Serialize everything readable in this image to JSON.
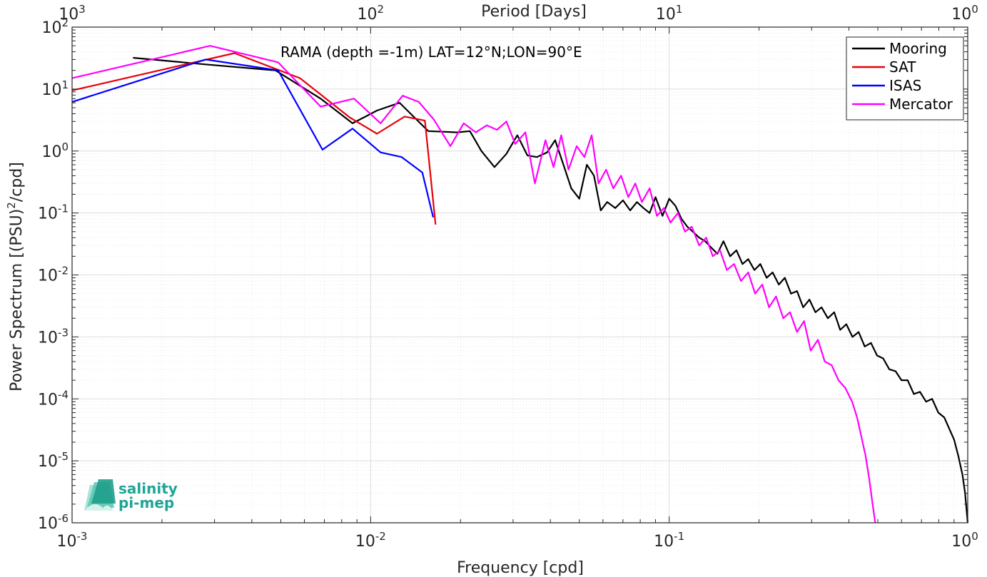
{
  "chart_data": {
    "type": "line",
    "xscale": "log",
    "yscale": "log",
    "xlim": [
      0.001,
      1
    ],
    "ylim": [
      1e-06,
      100
    ],
    "grid": true,
    "minor_grid": true,
    "xlabel": "Frequency [cpd]",
    "ylabel_main": "Power Spectrum [(PSU)",
    "ylabel_sup": "2",
    "ylabel_tail": "/cpd]",
    "top_xlabel": "Period [Days]",
    "annotation": "RAMA (depth =-1m) LAT=12°N;LON=90°E",
    "legend_position": "top-right",
    "x_ticks": [
      {
        "v": 0.001,
        "base": "10",
        "exp": "-3"
      },
      {
        "v": 0.01,
        "base": "10",
        "exp": "-2"
      },
      {
        "v": 0.1,
        "base": "10",
        "exp": "-1"
      },
      {
        "v": 1,
        "base": "10",
        "exp": "0"
      }
    ],
    "top_ticks": [
      {
        "v": 0.001,
        "base": "10",
        "exp": "3"
      },
      {
        "v": 0.01,
        "base": "10",
        "exp": "2"
      },
      {
        "v": 0.1,
        "base": "10",
        "exp": "1"
      },
      {
        "v": 1,
        "base": "10",
        "exp": "0"
      }
    ],
    "y_ticks": [
      {
        "v": 100,
        "base": "10",
        "exp": "2"
      },
      {
        "v": 10,
        "base": "10",
        "exp": "1"
      },
      {
        "v": 1,
        "base": "10",
        "exp": "0"
      },
      {
        "v": 0.1,
        "base": "10",
        "exp": "-1"
      },
      {
        "v": 0.01,
        "base": "10",
        "exp": "-2"
      },
      {
        "v": 0.001,
        "base": "10",
        "exp": "-3"
      },
      {
        "v": 0.0001,
        "base": "10",
        "exp": "-4"
      },
      {
        "v": 1e-05,
        "base": "10",
        "exp": "-5"
      },
      {
        "v": 1e-06,
        "base": "10",
        "exp": "-6"
      }
    ],
    "series": [
      {
        "name": "Mooring",
        "color": "#000000",
        "x": [
          0.0016,
          0.0028,
          0.0048,
          0.0068,
          0.0087,
          0.0105,
          0.0125,
          0.014,
          0.0156,
          0.0175,
          0.0195,
          0.0215,
          0.0235,
          0.026,
          0.0285,
          0.031,
          0.0335,
          0.036,
          0.039,
          0.0415,
          0.044,
          0.047,
          0.05,
          0.053,
          0.056,
          0.059,
          0.062,
          0.066,
          0.07,
          0.074,
          0.078,
          0.082,
          0.086,
          0.09,
          0.095,
          0.1,
          0.105,
          0.11,
          0.115,
          0.12,
          0.126,
          0.132,
          0.138,
          0.145,
          0.152,
          0.16,
          0.168,
          0.176,
          0.184,
          0.193,
          0.202,
          0.212,
          0.222,
          0.233,
          0.244,
          0.256,
          0.268,
          0.281,
          0.295,
          0.309,
          0.324,
          0.34,
          0.357,
          0.374,
          0.392,
          0.411,
          0.431,
          0.452,
          0.474,
          0.497,
          0.521,
          0.546,
          0.573,
          0.6,
          0.629,
          0.66,
          0.692,
          0.725,
          0.76,
          0.797,
          0.835,
          0.875,
          0.9,
          0.93,
          0.96,
          0.98,
          1.0
        ],
        "y": [
          32,
          25,
          20,
          7,
          2.8,
          4.5,
          6,
          3.5,
          2.1,
          2.05,
          2.0,
          2.1,
          1.0,
          0.55,
          0.9,
          1.8,
          0.85,
          0.8,
          0.95,
          1.5,
          0.65,
          0.25,
          0.17,
          0.6,
          0.4,
          0.11,
          0.15,
          0.12,
          0.16,
          0.11,
          0.15,
          0.12,
          0.1,
          0.18,
          0.09,
          0.17,
          0.13,
          0.08,
          0.06,
          0.05,
          0.04,
          0.035,
          0.028,
          0.022,
          0.035,
          0.02,
          0.025,
          0.015,
          0.018,
          0.012,
          0.015,
          0.009,
          0.011,
          0.007,
          0.009,
          0.005,
          0.0055,
          0.003,
          0.004,
          0.0025,
          0.003,
          0.002,
          0.0025,
          0.0013,
          0.0016,
          0.001,
          0.0012,
          0.0007,
          0.0008,
          0.0005,
          0.00045,
          0.0003,
          0.00028,
          0.0002,
          0.0002,
          0.00012,
          0.00013,
          9e-05,
          0.0001,
          6e-05,
          5e-05,
          3e-05,
          2.2e-05,
          1.2e-05,
          6e-06,
          3e-06,
          1e-06
        ]
      },
      {
        "name": "SAT",
        "color": "#e8000b",
        "x": [
          0.001,
          0.0035,
          0.0058,
          0.0085,
          0.0105,
          0.013,
          0.0152,
          0.0165
        ],
        "y": [
          9.5,
          38,
          15,
          3.5,
          1.9,
          3.6,
          3.1,
          0.065
        ]
      },
      {
        "name": "ISAS",
        "color": "#0000ff",
        "x": [
          0.001,
          0.0028,
          0.0049,
          0.0069,
          0.0087,
          0.0108,
          0.0127,
          0.0149,
          0.0162
        ],
        "y": [
          6.2,
          30,
          20,
          1.05,
          2.3,
          0.95,
          0.8,
          0.45,
          0.085
        ]
      },
      {
        "name": "Mercator",
        "color": "#ff00ff",
        "x": [
          0.001,
          0.0029,
          0.0049,
          0.0068,
          0.0088,
          0.0108,
          0.0128,
          0.0145,
          0.0163,
          0.0185,
          0.0205,
          0.0225,
          0.0245,
          0.0265,
          0.0285,
          0.0305,
          0.033,
          0.0355,
          0.0385,
          0.041,
          0.0435,
          0.046,
          0.049,
          0.052,
          0.055,
          0.058,
          0.0615,
          0.065,
          0.069,
          0.073,
          0.077,
          0.081,
          0.086,
          0.091,
          0.096,
          0.101,
          0.107,
          0.113,
          0.119,
          0.126,
          0.133,
          0.14,
          0.148,
          0.156,
          0.165,
          0.174,
          0.184,
          0.194,
          0.205,
          0.216,
          0.228,
          0.241,
          0.254,
          0.268,
          0.283,
          0.298,
          0.315,
          0.332,
          0.35,
          0.369,
          0.389,
          0.41,
          0.426,
          0.44,
          0.455,
          0.468,
          0.48,
          0.49
        ],
        "y": [
          15,
          50,
          27,
          5.2,
          7,
          2.8,
          7.8,
          6.2,
          3.2,
          1.2,
          2.8,
          2.0,
          2.6,
          2.2,
          3.0,
          1.3,
          2.0,
          0.3,
          1.5,
          0.55,
          1.8,
          0.5,
          1.2,
          0.8,
          1.8,
          0.3,
          0.5,
          0.25,
          0.4,
          0.18,
          0.3,
          0.15,
          0.25,
          0.09,
          0.12,
          0.07,
          0.1,
          0.05,
          0.06,
          0.03,
          0.04,
          0.02,
          0.025,
          0.012,
          0.015,
          0.008,
          0.011,
          0.005,
          0.007,
          0.003,
          0.0045,
          0.002,
          0.0025,
          0.0012,
          0.0018,
          0.0006,
          0.0009,
          0.0004,
          0.00035,
          0.0002,
          0.00015,
          9e-05,
          5e-05,
          2.5e-05,
          1.2e-05,
          5e-06,
          2e-06,
          1e-06
        ]
      }
    ]
  },
  "logo": {
    "line1": "salinity",
    "line2": "pi-mep"
  }
}
